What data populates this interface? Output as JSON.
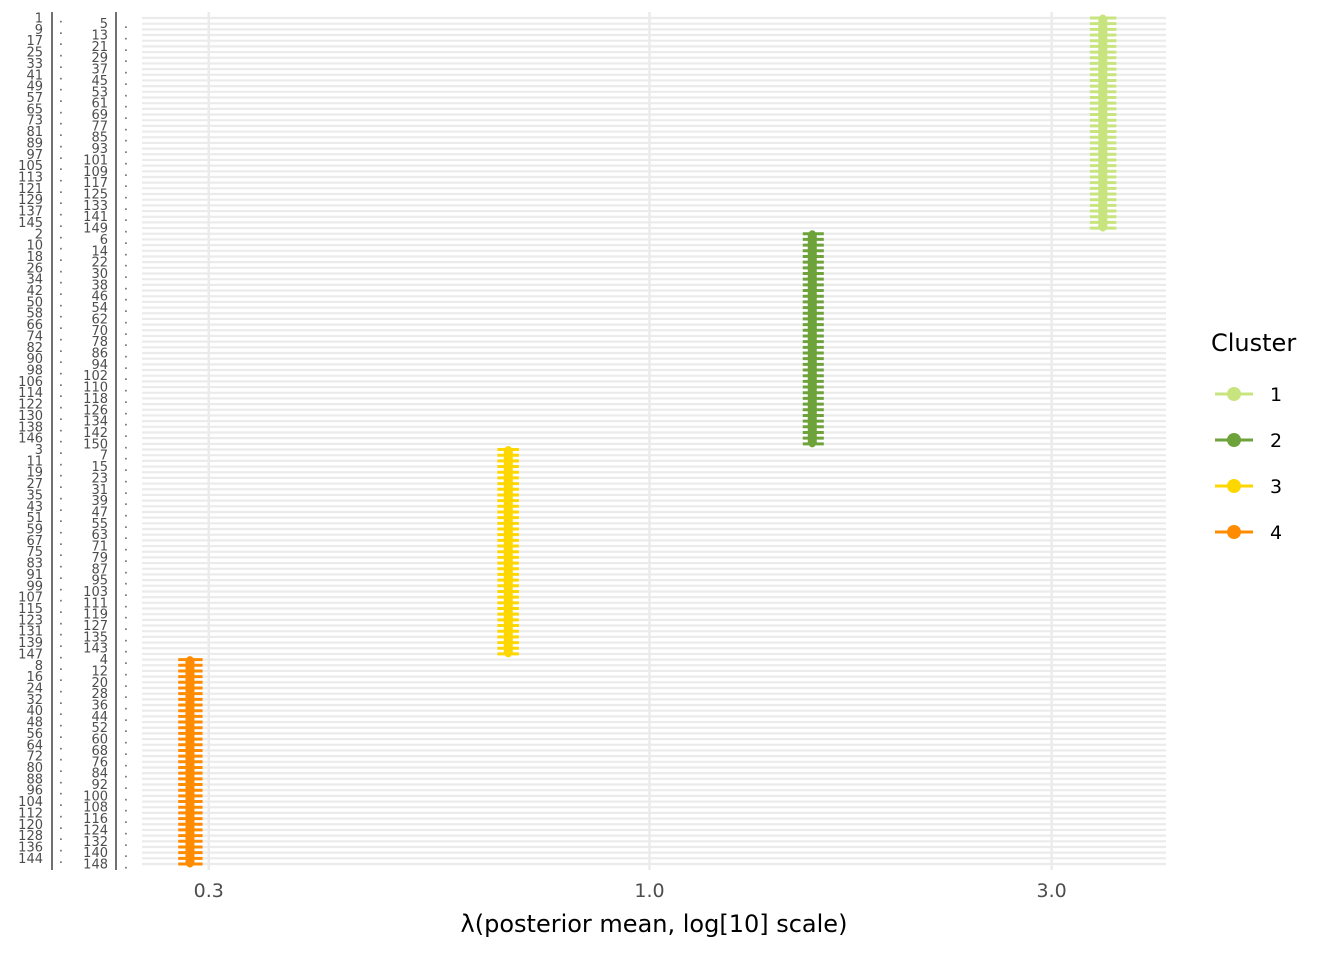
{
  "chart_data": {
    "type": "forest",
    "xlabel": "λ(posterior mean, log[10] scale)",
    "x_scale": "log10",
    "xlim": [
      0.25,
      4.1
    ],
    "x_ticks": [
      0.3,
      1.0,
      3.0
    ],
    "x_tick_labels": [
      "0.3",
      "1.0",
      "3.0"
    ],
    "grid": true,
    "legend_title": "Cluster",
    "legend_position": "right",
    "y_order": [
      1,
      5,
      9,
      13,
      17,
      21,
      25,
      29,
      33,
      37,
      41,
      45,
      49,
      53,
      57,
      61,
      65,
      69,
      73,
      77,
      81,
      85,
      89,
      93,
      97,
      101,
      105,
      109,
      113,
      117,
      121,
      125,
      129,
      133,
      137,
      141,
      145,
      149,
      2,
      6,
      10,
      14,
      18,
      22,
      26,
      30,
      34,
      38,
      42,
      46,
      50,
      54,
      58,
      62,
      66,
      70,
      74,
      78,
      82,
      86,
      90,
      94,
      98,
      102,
      106,
      110,
      114,
      118,
      122,
      126,
      130,
      134,
      138,
      142,
      146,
      150,
      3,
      7,
      11,
      15,
      19,
      23,
      27,
      31,
      35,
      39,
      43,
      47,
      51,
      55,
      59,
      63,
      67,
      71,
      75,
      79,
      83,
      87,
      91,
      95,
      99,
      103,
      107,
      111,
      115,
      119,
      123,
      127,
      131,
      135,
      139,
      143,
      147,
      4,
      8,
      12,
      16,
      20,
      24,
      28,
      32,
      36,
      40,
      44,
      48,
      52,
      56,
      60,
      64,
      68,
      72,
      76,
      80,
      84,
      88,
      92,
      96,
      100,
      104,
      108,
      112,
      116,
      120,
      124,
      128,
      132,
      136,
      140,
      144,
      148
    ],
    "series": [
      {
        "name": "1",
        "color": "#c7e47e",
        "estimate": 3.45,
        "lower": 3.33,
        "upper": 3.58,
        "items": [
          1,
          5,
          9,
          13,
          17,
          21,
          25,
          29,
          33,
          37,
          41,
          45,
          49,
          53,
          57,
          61,
          65,
          69,
          73,
          77,
          81,
          85,
          89,
          93,
          97,
          101,
          105,
          109,
          113,
          117,
          121,
          125,
          129,
          133,
          137,
          141,
          145,
          149
        ]
      },
      {
        "name": "2",
        "color": "#6ea33b",
        "estimate": 1.56,
        "lower": 1.52,
        "upper": 1.61,
        "items": [
          2,
          6,
          10,
          14,
          18,
          22,
          26,
          30,
          34,
          38,
          42,
          46,
          50,
          54,
          58,
          62,
          66,
          70,
          74,
          78,
          82,
          86,
          90,
          94,
          98,
          102,
          106,
          110,
          114,
          118,
          122,
          126,
          130,
          134,
          138,
          142,
          146,
          150
        ]
      },
      {
        "name": "3",
        "color": "#ffd700",
        "estimate": 0.68,
        "lower": 0.66,
        "upper": 0.7,
        "items": [
          3,
          7,
          11,
          15,
          19,
          23,
          27,
          31,
          35,
          39,
          43,
          47,
          51,
          55,
          59,
          63,
          67,
          71,
          75,
          79,
          83,
          87,
          91,
          95,
          99,
          103,
          107,
          111,
          115,
          119,
          123,
          127,
          131,
          135,
          139,
          143,
          147
        ]
      },
      {
        "name": "4",
        "color": "#ff8c00",
        "estimate": 0.285,
        "lower": 0.276,
        "upper": 0.295,
        "items": [
          4,
          8,
          12,
          16,
          20,
          24,
          28,
          32,
          36,
          40,
          44,
          48,
          52,
          56,
          60,
          64,
          68,
          72,
          76,
          80,
          84,
          88,
          92,
          96,
          100,
          104,
          108,
          112,
          116,
          120,
          124,
          128,
          132,
          136,
          140,
          144,
          148
        ]
      }
    ]
  }
}
